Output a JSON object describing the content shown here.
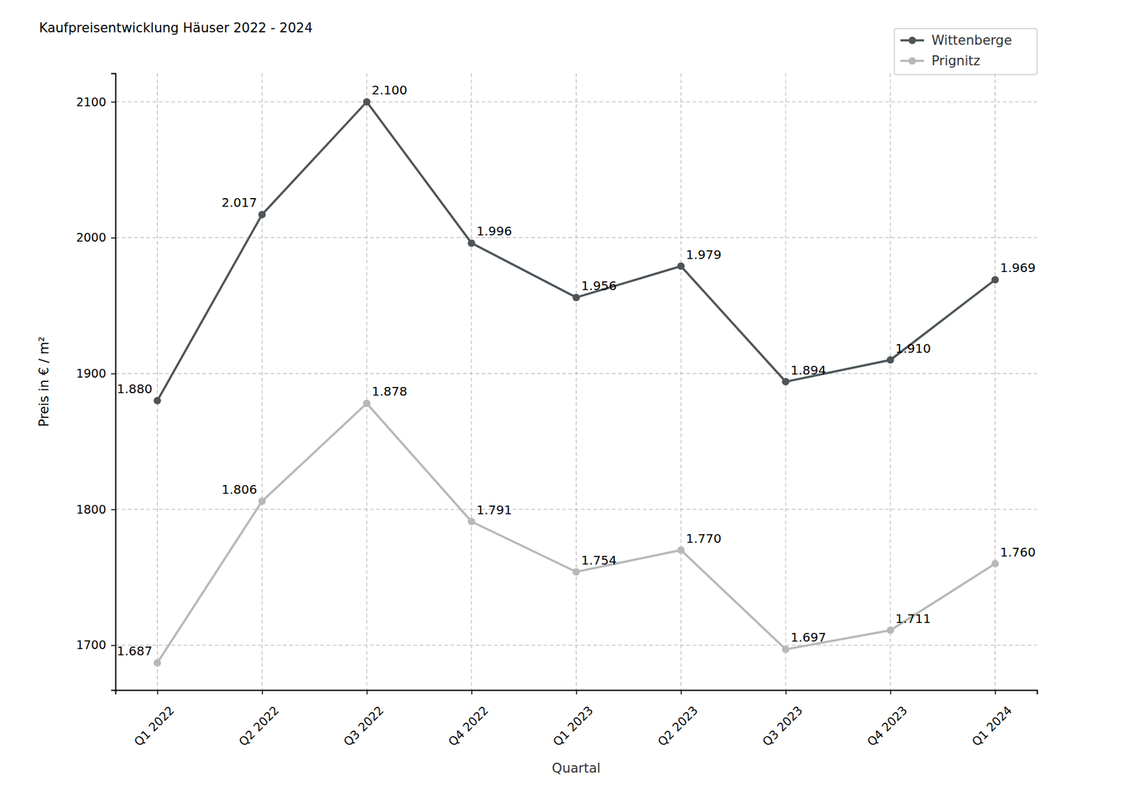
{
  "chart_data": {
    "type": "line",
    "title": "Kaufpreisentwicklung Häuser 2022 - 2024",
    "x_label": "Quartal",
    "y_label": "Preis in € / m²",
    "categories": [
      "Q1 2022",
      "Q2 2022",
      "Q3 2022",
      "Q4 2022",
      "Q1 2023",
      "Q2 2023",
      "Q3 2023",
      "Q4 2023",
      "Q1 2024"
    ],
    "series": [
      {
        "name": "Wittenberge",
        "color": "#4d5559",
        "marker": "circle",
        "line_style": "solid",
        "values": [
          1880,
          2017,
          2100,
          1996,
          1956,
          1979,
          1894,
          1910,
          1969
        ],
        "value_labels": [
          "1.880",
          "2.017",
          "2.100",
          "1.996",
          "1.956",
          "1.979",
          "1.894",
          "1.910",
          "1.969"
        ]
      },
      {
        "name": "Prignitz",
        "color": "#b8b8b8",
        "marker": "circle",
        "line_style": "solid",
        "values": [
          1687,
          1806,
          1878,
          1791,
          1754,
          1770,
          1697,
          1711,
          1760
        ],
        "value_labels": [
          "1.687",
          "1.806",
          "1.878",
          "1.791",
          "1.754",
          "1.770",
          "1.697",
          "1.711",
          "1.760"
        ]
      }
    ],
    "ylim": [
      1667,
      2121
    ],
    "yticks": [
      1700,
      1800,
      1900,
      2000,
      2100
    ],
    "grid": true,
    "legend": "upper right",
    "data_labels": true
  }
}
